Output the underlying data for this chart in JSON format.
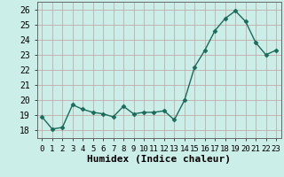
{
  "x": [
    0,
    1,
    2,
    3,
    4,
    5,
    6,
    7,
    8,
    9,
    10,
    11,
    12,
    13,
    14,
    15,
    16,
    17,
    18,
    19,
    20,
    21,
    22,
    23
  ],
  "y": [
    18.9,
    18.1,
    18.2,
    19.7,
    19.4,
    19.2,
    19.1,
    18.9,
    19.6,
    19.1,
    19.2,
    19.2,
    19.3,
    18.7,
    20.0,
    22.2,
    23.3,
    24.6,
    25.4,
    25.9,
    25.2,
    23.8,
    23.0,
    23.3
  ],
  "line_color": "#1a6b5a",
  "marker": "D",
  "marker_size": 2.5,
  "line_width": 1.0,
  "background_color": "#cceee8",
  "grid_color": "#c0a0a0",
  "xlabel": "Humidex (Indice chaleur)",
  "xlim": [
    -0.5,
    23.5
  ],
  "ylim": [
    17.5,
    26.5
  ],
  "yticks": [
    18,
    19,
    20,
    21,
    22,
    23,
    24,
    25,
    26
  ],
  "xlabel_fontsize": 8,
  "tick_fontsize": 7
}
